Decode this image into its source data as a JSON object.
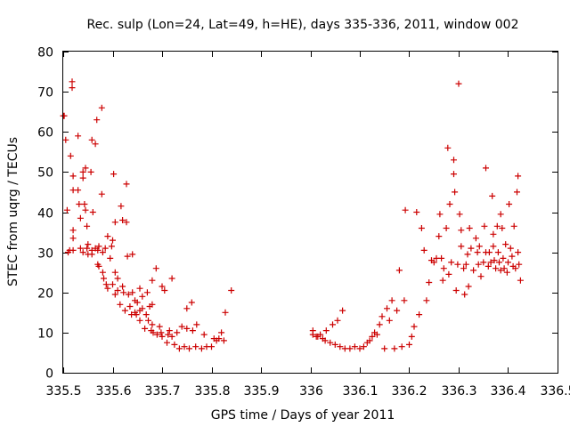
{
  "chart_data": {
    "type": "scatter",
    "title": "Rec. sulp (Lon=24, Lat=49, h=HE), days 335-336, 2011, window 002",
    "xlabel": "GPS time / Days of year 2011",
    "ylabel": "STEC from uqrg / TECUs",
    "xlim": [
      335.5,
      336.5
    ],
    "ylim": [
      0,
      80
    ],
    "x_ticks": [
      "335.5",
      "335.6",
      "335.7",
      "335.8",
      "335.9",
      "336",
      "336.1",
      "336.2",
      "336.3",
      "336.4",
      "336.5"
    ],
    "y_ticks": [
      "0",
      "10",
      "20",
      "30",
      "40",
      "50",
      "60",
      "70",
      "80"
    ],
    "grid": false,
    "legend": "none",
    "marker": "plus",
    "color": "#cc0000",
    "series": [
      {
        "points": [
          [
            335.5,
            64
          ],
          [
            335.502,
            64
          ],
          [
            335.505,
            58
          ],
          [
            335.508,
            40.5
          ],
          [
            335.51,
            30
          ],
          [
            335.513,
            30.5
          ],
          [
            335.515,
            54
          ],
          [
            335.518,
            72.5
          ],
          [
            335.518,
            71
          ],
          [
            335.52,
            49
          ],
          [
            335.52,
            45.5
          ],
          [
            335.52,
            35.5
          ],
          [
            335.52,
            33.5
          ],
          [
            335.52,
            30.5
          ],
          [
            335.53,
            59
          ],
          [
            335.53,
            45.5
          ],
          [
            335.532,
            42
          ],
          [
            335.535,
            38.5
          ],
          [
            335.535,
            31
          ],
          [
            335.54,
            50
          ],
          [
            335.54,
            48.5
          ],
          [
            335.54,
            30
          ],
          [
            335.543,
            42
          ],
          [
            335.545,
            51
          ],
          [
            335.545,
            40.5
          ],
          [
            335.548,
            36.5
          ],
          [
            335.548,
            31
          ],
          [
            335.55,
            32
          ],
          [
            335.55,
            29.5
          ],
          [
            335.556,
            50
          ],
          [
            335.558,
            58
          ],
          [
            335.558,
            30.5
          ],
          [
            335.558,
            29.5
          ],
          [
            335.56,
            40
          ],
          [
            335.565,
            57
          ],
          [
            335.565,
            31
          ],
          [
            335.568,
            63
          ],
          [
            335.57,
            27
          ],
          [
            335.57,
            30.5
          ],
          [
            335.572,
            31.5
          ],
          [
            335.572,
            26.5
          ],
          [
            335.578,
            66
          ],
          [
            335.578,
            44.5
          ],
          [
            335.58,
            30
          ],
          [
            335.58,
            25
          ],
          [
            335.582,
            23.5
          ],
          [
            335.585,
            31
          ],
          [
            335.587,
            22
          ],
          [
            335.59,
            34
          ],
          [
            335.59,
            21
          ],
          [
            335.595,
            28.5
          ],
          [
            335.598,
            31.5
          ],
          [
            335.6,
            22
          ],
          [
            335.6,
            33
          ],
          [
            335.602,
            49.5
          ],
          [
            335.605,
            37.5
          ],
          [
            335.605,
            25
          ],
          [
            335.605,
            19.5
          ],
          [
            335.61,
            23.5
          ],
          [
            335.61,
            20.5
          ],
          [
            335.615,
            17
          ],
          [
            335.617,
            41.5
          ],
          [
            335.62,
            38
          ],
          [
            335.62,
            21.5
          ],
          [
            335.622,
            20
          ],
          [
            335.625,
            15.5
          ],
          [
            335.628,
            47
          ],
          [
            335.628,
            37.5
          ],
          [
            335.63,
            29
          ],
          [
            335.632,
            19.5
          ],
          [
            335.635,
            16.5
          ],
          [
            335.638,
            14.5
          ],
          [
            335.64,
            29.5
          ],
          [
            335.64,
            20
          ],
          [
            335.645,
            18
          ],
          [
            335.645,
            15
          ],
          [
            335.648,
            14.5
          ],
          [
            335.65,
            17.5
          ],
          [
            335.655,
            21
          ],
          [
            335.655,
            15.5
          ],
          [
            335.655,
            13
          ],
          [
            335.66,
            19
          ],
          [
            335.66,
            16
          ],
          [
            335.665,
            11
          ],
          [
            335.668,
            14.5
          ],
          [
            335.67,
            20
          ],
          [
            335.672,
            13
          ],
          [
            335.675,
            16.5
          ],
          [
            335.678,
            10.5
          ],
          [
            335.68,
            23
          ],
          [
            335.68,
            17
          ],
          [
            335.68,
            12
          ],
          [
            335.682,
            10
          ],
          [
            335.688,
            26
          ],
          [
            335.69,
            9.5
          ],
          [
            335.695,
            11.5
          ],
          [
            335.698,
            10
          ],
          [
            335.7,
            9
          ],
          [
            335.7,
            21.5
          ],
          [
            335.705,
            20.5
          ],
          [
            335.71,
            7.5
          ],
          [
            335.712,
            9.5
          ],
          [
            335.715,
            10.5
          ],
          [
            335.72,
            23.5
          ],
          [
            335.72,
            9
          ],
          [
            335.725,
            7
          ],
          [
            335.73,
            10
          ],
          [
            335.735,
            6
          ],
          [
            335.74,
            11.5
          ],
          [
            335.745,
            6.5
          ],
          [
            335.75,
            16
          ],
          [
            335.75,
            11
          ],
          [
            335.755,
            6
          ],
          [
            335.76,
            17.5
          ],
          [
            335.762,
            10.5
          ],
          [
            335.768,
            6.5
          ],
          [
            335.77,
            12
          ],
          [
            335.78,
            6
          ],
          [
            335.785,
            9.5
          ],
          [
            335.79,
            6.5
          ],
          [
            335.8,
            6.5
          ],
          [
            335.805,
            8.5
          ],
          [
            335.81,
            8
          ],
          [
            335.815,
            8.5
          ],
          [
            335.82,
            10
          ],
          [
            335.825,
            8
          ],
          [
            335.828,
            15
          ],
          [
            335.84,
            20.5
          ]
        ]
      },
      {
        "points": [
          [
            336.005,
            9.5
          ],
          [
            336.005,
            10.5
          ],
          [
            336.012,
            9
          ],
          [
            336.015,
            9
          ],
          [
            336.02,
            9.5
          ],
          [
            336.025,
            8.5
          ],
          [
            336.03,
            8
          ],
          [
            336.032,
            10.5
          ],
          [
            336.04,
            7.5
          ],
          [
            336.045,
            12
          ],
          [
            336.05,
            7
          ],
          [
            336.055,
            13
          ],
          [
            336.06,
            6.5
          ],
          [
            336.065,
            15.5
          ],
          [
            336.07,
            6
          ],
          [
            336.08,
            6
          ],
          [
            336.09,
            6.5
          ],
          [
            336.1,
            6
          ],
          [
            336.108,
            6.5
          ],
          [
            336.115,
            7.5
          ],
          [
            336.12,
            8
          ],
          [
            336.125,
            9
          ],
          [
            336.13,
            10
          ],
          [
            336.135,
            9.5
          ],
          [
            336.14,
            12
          ],
          [
            336.145,
            14
          ],
          [
            336.15,
            6
          ],
          [
            336.155,
            16
          ],
          [
            336.16,
            13
          ],
          [
            336.165,
            18
          ],
          [
            336.17,
            6
          ],
          [
            336.175,
            15.5
          ],
          [
            336.18,
            25.5
          ],
          [
            336.185,
            6.5
          ],
          [
            336.19,
            18
          ],
          [
            336.192,
            40.5
          ],
          [
            336.2,
            7
          ],
          [
            336.205,
            9
          ],
          [
            336.21,
            11.5
          ],
          [
            336.215,
            40
          ],
          [
            336.22,
            14.5
          ],
          [
            336.225,
            36
          ],
          [
            336.23,
            30.5
          ],
          [
            336.235,
            18
          ],
          [
            336.24,
            22.5
          ],
          [
            336.245,
            28
          ],
          [
            336.25,
            27.5
          ],
          [
            336.255,
            28.5
          ],
          [
            336.26,
            34
          ],
          [
            336.262,
            39.5
          ],
          [
            336.265,
            28.5
          ],
          [
            336.268,
            23
          ],
          [
            336.27,
            26
          ],
          [
            336.275,
            36
          ],
          [
            336.278,
            56
          ],
          [
            336.28,
            24.5
          ],
          [
            336.282,
            42
          ],
          [
            336.285,
            27.5
          ],
          [
            336.29,
            53
          ],
          [
            336.29,
            49.5
          ],
          [
            336.292,
            45
          ],
          [
            336.295,
            20.5
          ],
          [
            336.298,
            27
          ],
          [
            336.3,
            72
          ],
          [
            336.302,
            39.5
          ],
          [
            336.305,
            35.5
          ],
          [
            336.305,
            31.5
          ],
          [
            336.31,
            26
          ],
          [
            336.312,
            19.5
          ],
          [
            336.315,
            27
          ],
          [
            336.318,
            29.5
          ],
          [
            336.32,
            21.5
          ],
          [
            336.322,
            36
          ],
          [
            336.325,
            31
          ],
          [
            336.33,
            25.5
          ],
          [
            336.335,
            33.5
          ],
          [
            336.338,
            30
          ],
          [
            336.34,
            27
          ],
          [
            336.342,
            31.5
          ],
          [
            336.345,
            24
          ],
          [
            336.35,
            27.5
          ],
          [
            336.352,
            36.5
          ],
          [
            336.355,
            51
          ],
          [
            336.355,
            30
          ],
          [
            336.36,
            26.5
          ],
          [
            336.362,
            30
          ],
          [
            336.365,
            27.5
          ],
          [
            336.368,
            44
          ],
          [
            336.37,
            34.5
          ],
          [
            336.37,
            31.5
          ],
          [
            336.372,
            28
          ],
          [
            336.375,
            26
          ],
          [
            336.378,
            36.5
          ],
          [
            336.38,
            30
          ],
          [
            336.382,
            27.5
          ],
          [
            336.385,
            39.5
          ],
          [
            336.385,
            25.5
          ],
          [
            336.388,
            36
          ],
          [
            336.39,
            28.5
          ],
          [
            336.392,
            26
          ],
          [
            336.395,
            32
          ],
          [
            336.398,
            25
          ],
          [
            336.4,
            27.5
          ],
          [
            336.402,
            42
          ],
          [
            336.405,
            31
          ],
          [
            336.408,
            29
          ],
          [
            336.41,
            26.5
          ],
          [
            336.412,
            36.5
          ],
          [
            336.415,
            26
          ],
          [
            336.418,
            45
          ],
          [
            336.42,
            49
          ],
          [
            336.42,
            30
          ],
          [
            336.422,
            27
          ],
          [
            336.425,
            23
          ]
        ]
      }
    ]
  }
}
